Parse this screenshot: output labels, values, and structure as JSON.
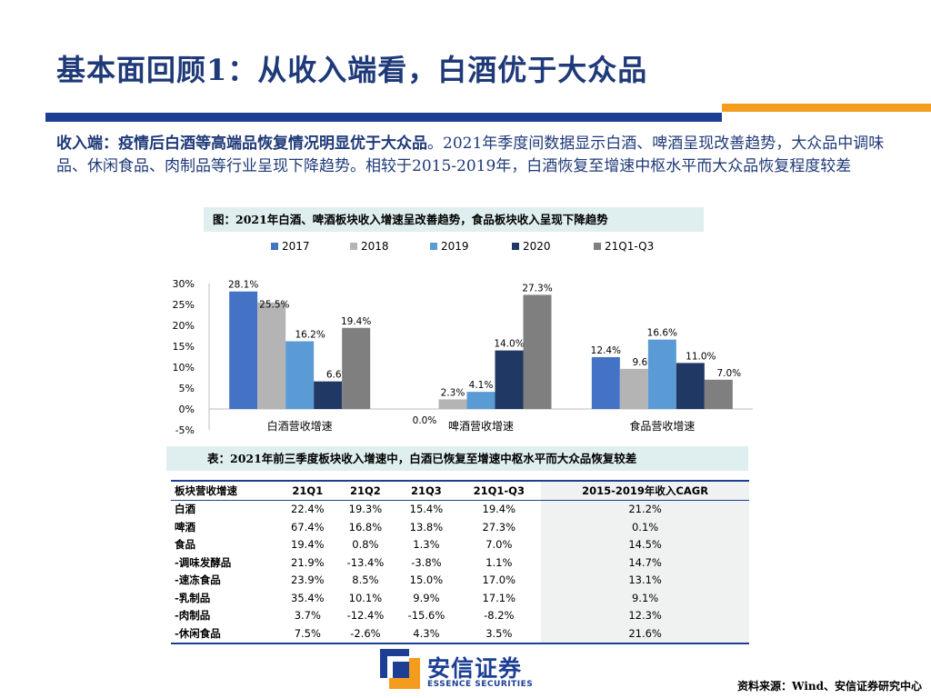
{
  "header": {
    "title": "基本面回顾1：从收入端看，白酒优于大众品"
  },
  "intro": {
    "lead": "收入端：疫情后白酒等高端品恢复情况明显优于大众品",
    "body": "。2021年季度间数据显示白酒、啤酒呈现改善趋势，大众品中调味品、休闲食品、肉制品等行业呈现下降趋势。相较于2015-2019年，白酒恢复至增速中枢水平而大众品恢复程度较差"
  },
  "chart_caption": "图：2021年白酒、啤酒板块收入增速呈改善趋势，食品板块收入呈现下降趋势",
  "table_caption": "表：2021年前三季度板块收入增速中，白酒已恢复至增速中枢水平而大众品恢复较差",
  "chart_data": {
    "type": "bar",
    "categories": [
      "白酒营收增速",
      "啤酒营收增速",
      "食品营收增速"
    ],
    "series": [
      {
        "name": "2017",
        "color": "#4472c4",
        "values": [
          28.1,
          0.0,
          12.4
        ],
        "labels": [
          "28.1%",
          "0.0%",
          "12.4%"
        ]
      },
      {
        "name": "2018",
        "color": "#b4b4b4",
        "values": [
          25.5,
          2.3,
          9.6
        ],
        "labels": [
          "25.5%",
          "2.3%",
          "9.6%"
        ]
      },
      {
        "name": "2019",
        "color": "#5b9bd5",
        "values": [
          16.2,
          4.1,
          16.6
        ],
        "labels": [
          "16.2%",
          "4.1%",
          "16.6%"
        ]
      },
      {
        "name": "2020",
        "color": "#203864",
        "values": [
          6.6,
          14.0,
          11.0
        ],
        "labels": [
          "6.6%",
          "14.0%",
          "11.0%"
        ]
      },
      {
        "name": "21Q1-Q3",
        "color": "#7f7f7f",
        "values": [
          19.4,
          27.3,
          7.0
        ],
        "labels": [
          "19.4%",
          "27.3%",
          "7.0%"
        ]
      }
    ],
    "yticks": [
      "30%",
      "25%",
      "20%",
      "15%",
      "10%",
      "5%",
      "0%",
      "-5%"
    ],
    "ylim": [
      -5,
      30
    ],
    "legend_position": "top",
    "grid": false
  },
  "table": {
    "headers": [
      "板块营收增速",
      "21Q1",
      "21Q2",
      "21Q3",
      "21Q1-Q3",
      "2015-2019年收入CAGR"
    ],
    "rows": [
      [
        "白酒",
        "22.4%",
        "19.3%",
        "15.4%",
        "19.4%",
        "21.2%"
      ],
      [
        "啤酒",
        "67.4%",
        "16.8%",
        "13.8%",
        "27.3%",
        "0.1%"
      ],
      [
        "食品",
        "19.4%",
        "0.8%",
        "1.3%",
        "7.0%",
        "14.5%"
      ],
      [
        "-调味发酵品",
        "21.9%",
        "-13.4%",
        "-3.8%",
        "1.1%",
        "14.7%"
      ],
      [
        "-速冻食品",
        "23.9%",
        "8.5%",
        "15.0%",
        "17.0%",
        "13.1%"
      ],
      [
        "-乳制品",
        "35.4%",
        "10.1%",
        "9.9%",
        "17.1%",
        "9.1%"
      ],
      [
        "-肉制品",
        "3.7%",
        "-12.4%",
        "-15.6%",
        "-8.2%",
        "12.3%"
      ],
      [
        "-休闲食品",
        "7.5%",
        "-2.6%",
        "4.3%",
        "3.5%",
        "21.6%"
      ]
    ]
  },
  "logo": {
    "name_cn": "安信证券",
    "name_en": "ESSENCE SECURITIES"
  },
  "footer": {
    "source": "资料来源：Wind、安信证券研究中心"
  },
  "colors": {
    "title": "#1f3a78",
    "accent_navy": "#1c3f94",
    "accent_orange": "#f39c1e",
    "caption_bg": "#dfeeee"
  }
}
